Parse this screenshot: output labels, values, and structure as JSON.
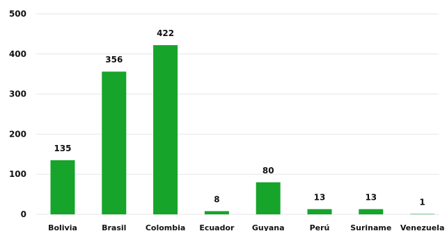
{
  "chart_data": {
    "type": "bar",
    "categories": [
      "Bolivia",
      "Brasil",
      "Colombia",
      "Ecuador",
      "Guyana",
      "Perú",
      "Suriname",
      "Venezuela"
    ],
    "values": [
      135,
      356,
      422,
      8,
      80,
      13,
      13,
      1
    ],
    "ylim": [
      0,
      500
    ],
    "yticks": [
      0,
      100,
      200,
      300,
      400,
      500
    ],
    "grid": true,
    "bar_color": "#16a42b",
    "title": "",
    "xlabel": "",
    "ylabel": ""
  }
}
